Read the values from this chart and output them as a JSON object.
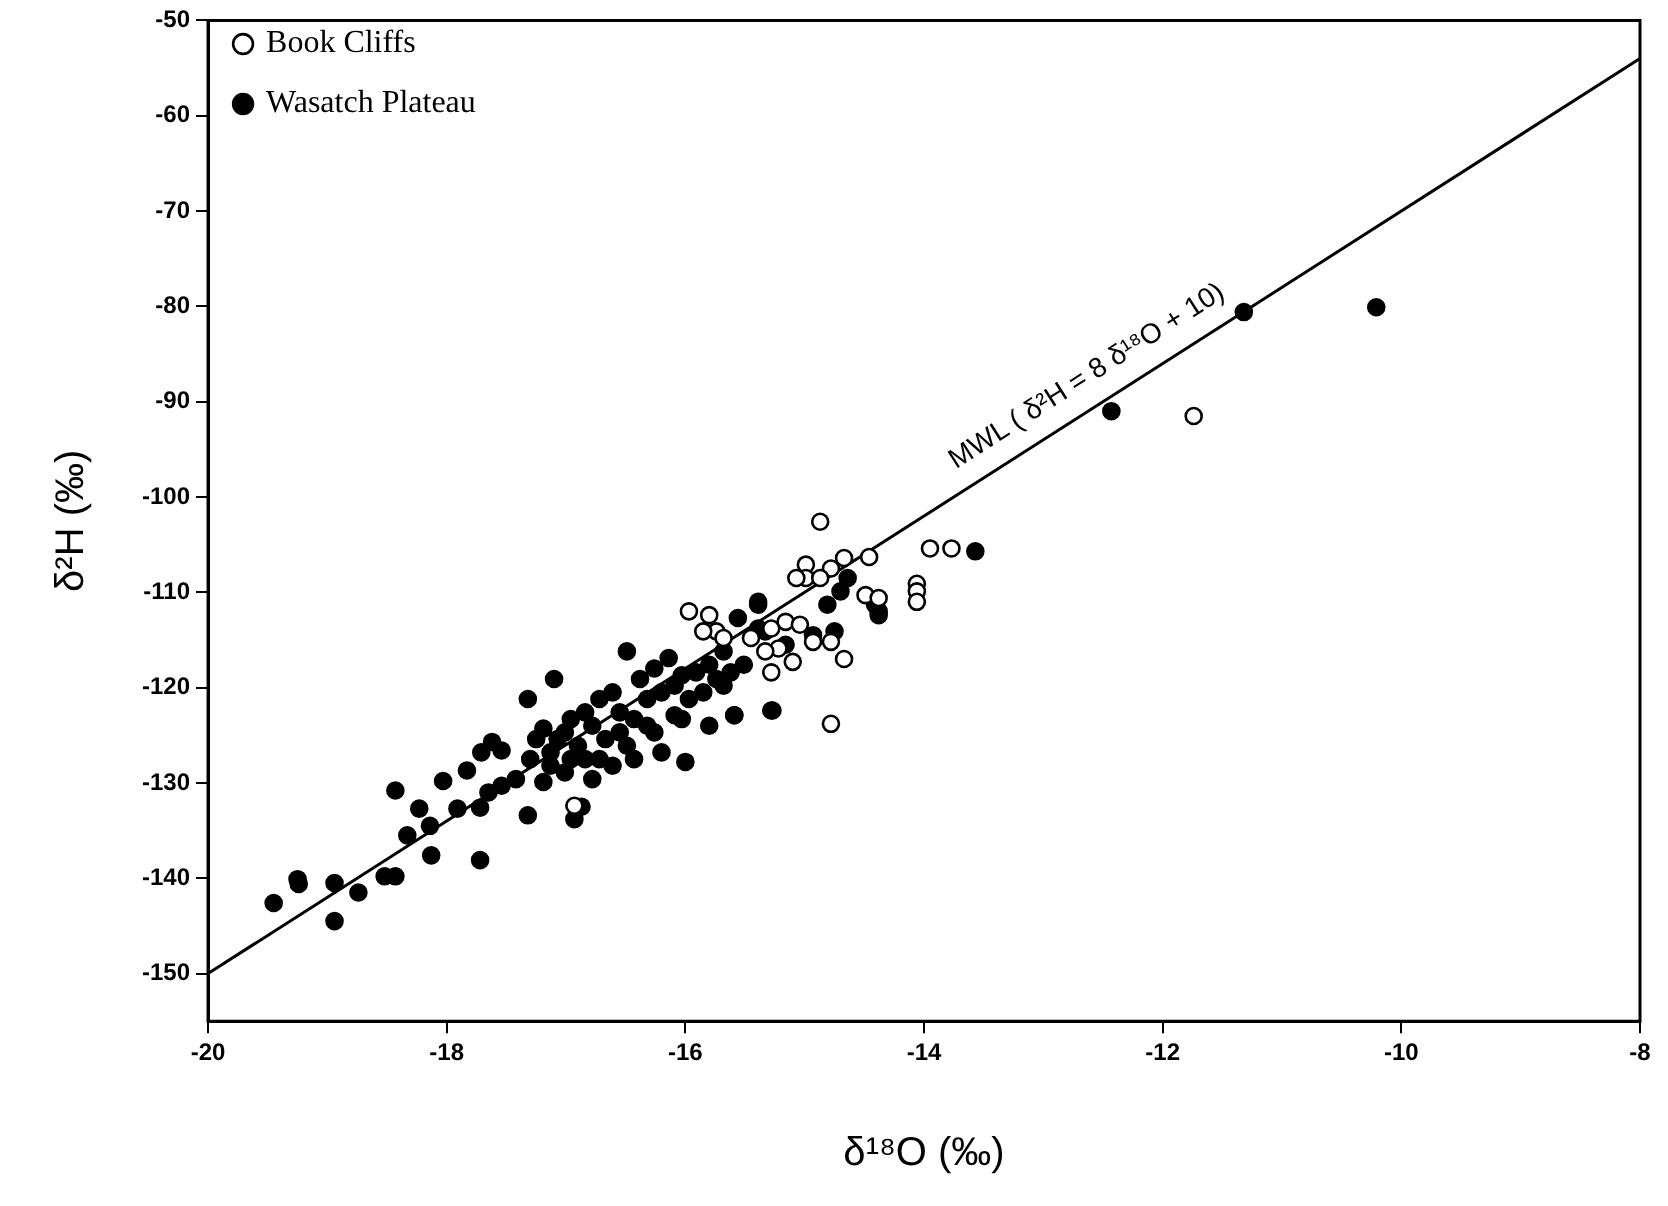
{
  "chart_data": {
    "type": "scatter",
    "xlabel": "δ¹⁸O (‰)",
    "ylabel": "δ²H (‰)",
    "xlim": [
      -20,
      -8
    ],
    "xticks": [
      -20,
      -18,
      -16,
      -14,
      -12,
      -10,
      -8
    ],
    "ylim": [
      -155,
      -50
    ],
    "yticks": [
      -150,
      -140,
      -130,
      -120,
      -110,
      -100,
      -90,
      -80,
      -70,
      -60,
      -50
    ],
    "grid": false,
    "legend": "top left",
    "marker": "circle",
    "annotations": [
      {
        "text": "MWL ( δ²H = 8 δ¹⁸O + 10)",
        "x": -12.5,
        "y": -90
      }
    ],
    "series": [
      {
        "name": "Book Cliffs",
        "color": "#ffffff",
        "x": [
          -14.87,
          -13.95,
          -13.77,
          -14.06,
          -14.06,
          -14.06,
          -14.46,
          -14.67,
          -14.78,
          -14.99,
          -14.99,
          -15.07,
          -14.87,
          -14.49,
          -14.38,
          -15.97,
          -15.8,
          -15.74,
          -15.85,
          -15.68,
          -15.28,
          -15.16,
          -15.04,
          -14.93,
          -14.78,
          -14.67,
          -15.22,
          -15.1,
          -15.28,
          -14.78,
          -15.45,
          -15.33,
          -16.93,
          -11.74
        ],
        "values": [
          -102.6,
          -105.4,
          -105.4,
          -109.1,
          -109.9,
          -111.0,
          -106.3,
          -106.4,
          -107.5,
          -107.1,
          -108.5,
          -108.5,
          -108.5,
          -110.3,
          -110.6,
          -112.0,
          -112.4,
          -114.1,
          -114.1,
          -114.8,
          -113.8,
          -113.1,
          -113.4,
          -115.2,
          -115.2,
          -117.0,
          -115.9,
          -117.3,
          -118.4,
          -123.8,
          -114.8,
          -116.2,
          -132.4,
          -91.5
        ]
      },
      {
        "name": "Wasatch Plateau",
        "color": "#000000",
        "x": [
          -19.45,
          -19.25,
          -19.24,
          -18.94,
          -18.94,
          -18.74,
          -18.52,
          -18.43,
          -18.33,
          -18.13,
          -18.23,
          -18.14,
          -18.43,
          -18.03,
          -17.91,
          -17.72,
          -17.72,
          -17.83,
          -17.71,
          -17.62,
          -17.54,
          -17.32,
          -17.32,
          -17.1,
          -16.93,
          -16.87,
          -17.19,
          -17.07,
          -16.96,
          -16.84,
          -16.72,
          -16.61,
          -16.49,
          -16.38,
          -16.26,
          -16.14,
          -16.03,
          -15.91,
          -15.8,
          -15.68,
          -16.0,
          -16.2,
          -16.43,
          -16.61,
          -16.78,
          -17.01,
          -17.19,
          -17.42,
          -17.3,
          -16.84,
          -16.55,
          -16.32,
          -16.09,
          -15.8,
          -15.59,
          -15.28,
          -15.39,
          -15.39,
          -15.68,
          -15.56,
          -15.33,
          -15.16,
          -14.93,
          -14.81,
          -14.7,
          -14.64,
          -14.41,
          -14.38,
          -14.75,
          -17.25,
          -17.13,
          -17.01,
          -16.9,
          -16.78,
          -16.67,
          -16.55,
          -16.43,
          -16.32,
          -16.2,
          -16.09,
          -15.97,
          -15.85,
          -15.74,
          -15.62,
          -15.51,
          -17.13,
          -16.96,
          -16.72,
          -16.49,
          -16.26,
          -16.03,
          -17.54,
          -17.65,
          -13.57,
          -14.38,
          -15.59,
          -15.27,
          -15.39,
          -12.43,
          -11.32,
          -10.21
        ],
        "values": [
          -142.6,
          -140.1,
          -140.6,
          -140.5,
          -144.5,
          -141.5,
          -139.8,
          -139.8,
          -135.5,
          -137.6,
          -132.7,
          -134.5,
          -130.8,
          -129.8,
          -132.7,
          -132.6,
          -138.1,
          -128.7,
          -126.8,
          -125.7,
          -126.6,
          -133.4,
          -121.2,
          -119.1,
          -133.8,
          -132.5,
          -124.3,
          -125.4,
          -123.3,
          -122.6,
          -121.2,
          -120.5,
          -116.2,
          -119.1,
          -118.0,
          -116.9,
          -118.7,
          -118.4,
          -117.6,
          -119.8,
          -127.8,
          -126.8,
          -127.5,
          -128.2,
          -129.6,
          -128.9,
          -129.9,
          -129.6,
          -127.5,
          -127.5,
          -124.7,
          -124.0,
          -122.9,
          -124.0,
          -122.9,
          -122.4,
          -111.3,
          -113.8,
          -116.2,
          -112.7,
          -114.1,
          -115.5,
          -114.5,
          -111.3,
          -109.9,
          -108.5,
          -111.3,
          -112.4,
          -114.1,
          -125.4,
          -126.8,
          -124.7,
          -126.1,
          -124.0,
          -125.4,
          -122.6,
          -123.3,
          -121.2,
          -120.5,
          -119.8,
          -121.2,
          -120.5,
          -119.1,
          -118.4,
          -117.6,
          -128.2,
          -127.5,
          -127.5,
          -126.1,
          -124.7,
          -123.3,
          -130.3,
          -131.0,
          -105.7,
          -112.0,
          -122.9,
          -122.4,
          -111.0,
          -91.0,
          -80.6,
          -80.1
        ]
      },
      {
        "type": "line",
        "color": "#000000",
        "marker": "none",
        "line_style": "solid",
        "x": [
          -20,
          -8
        ],
        "values": [
          -150,
          -54
        ]
      }
    ]
  }
}
